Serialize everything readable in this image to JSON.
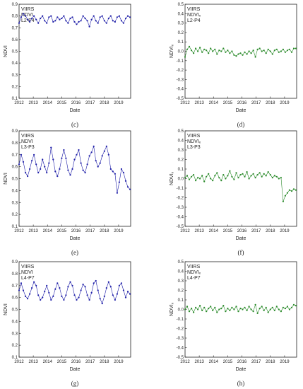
{
  "colors": {
    "blue": "#1f1fa8",
    "green": "#2a8a2a"
  },
  "x_axis": {
    "label": "Date",
    "range": [
      2012,
      2019.85
    ],
    "ticks": [
      "2012",
      "2013",
      "2014",
      "2015",
      "2016",
      "2017",
      "2018",
      "2019"
    ]
  },
  "chart_data": [
    {
      "type": "line",
      "panel_label": "(c)",
      "legend": [
        "VIIRS",
        "NDVI",
        "L2-P4"
      ],
      "ylabel": "NDVI",
      "ylim": [
        0.1,
        0.9
      ],
      "yticks": [
        "0.1",
        "0.2",
        "0.3",
        "0.4",
        "0.5",
        "0.6",
        "0.7",
        "0.8",
        "0.9"
      ],
      "color": "#1f1fa8",
      "series": [
        {
          "x": [
            2012.0,
            2012.15,
            2012.3,
            2012.45,
            2012.6,
            2012.75,
            2012.9,
            2013.05,
            2013.2,
            2013.35,
            2013.5,
            2013.65,
            2013.8,
            2013.95,
            2014.1,
            2014.25,
            2014.4,
            2014.55,
            2014.7,
            2014.85,
            2015.0,
            2015.15,
            2015.3,
            2015.45,
            2015.6,
            2015.75,
            2015.9,
            2016.05,
            2016.2,
            2016.35,
            2016.5,
            2016.65,
            2016.8,
            2016.95,
            2017.1,
            2017.25,
            2017.4,
            2017.55,
            2017.7,
            2017.85,
            2018.0,
            2018.15,
            2018.3,
            2018.45,
            2018.6,
            2018.75,
            2018.9,
            2019.05,
            2019.2,
            2019.35,
            2019.5,
            2019.65,
            2019.8
          ],
          "y": [
            0.74,
            0.79,
            0.82,
            0.8,
            0.77,
            0.75,
            0.78,
            0.8,
            0.77,
            0.74,
            0.78,
            0.8,
            0.76,
            0.74,
            0.79,
            0.8,
            0.75,
            0.76,
            0.79,
            0.77,
            0.78,
            0.8,
            0.76,
            0.74,
            0.78,
            0.79,
            0.75,
            0.73,
            0.75,
            0.76,
            0.8,
            0.78,
            0.76,
            0.71,
            0.77,
            0.8,
            0.76,
            0.74,
            0.79,
            0.8,
            0.76,
            0.74,
            0.78,
            0.8,
            0.76,
            0.75,
            0.79,
            0.8,
            0.76,
            0.74,
            0.78,
            0.8,
            0.79
          ]
        }
      ]
    },
    {
      "type": "line",
      "panel_label": "(d)",
      "legend": [
        "VIIRS",
        "NDVIₓ",
        "L2-P4"
      ],
      "ylabel": "NDVIₓ",
      "ylim": [
        -0.5,
        0.5
      ],
      "yticks": [
        "-0.5",
        "-0.4",
        "-0.3",
        "-0.2",
        "-0.1",
        "0.0",
        "0.1",
        "0.2",
        "0.3",
        "0.4",
        "0.5"
      ],
      "color": "#2a8a2a",
      "series": [
        {
          "x": [
            2012.0,
            2012.15,
            2012.3,
            2012.45,
            2012.6,
            2012.75,
            2012.9,
            2013.05,
            2013.2,
            2013.35,
            2013.5,
            2013.65,
            2013.8,
            2013.95,
            2014.1,
            2014.25,
            2014.4,
            2014.55,
            2014.7,
            2014.85,
            2015.0,
            2015.15,
            2015.3,
            2015.45,
            2015.6,
            2015.75,
            2015.9,
            2016.05,
            2016.2,
            2016.35,
            2016.5,
            2016.65,
            2016.8,
            2016.95,
            2017.1,
            2017.25,
            2017.4,
            2017.55,
            2017.7,
            2017.85,
            2018.0,
            2018.15,
            2018.3,
            2018.45,
            2018.6,
            2018.75,
            2018.9,
            2019.05,
            2019.2,
            2019.35,
            2019.5,
            2019.65,
            2019.8
          ],
          "y": [
            -0.06,
            0.02,
            0.05,
            0.01,
            -0.02,
            0.03,
            0.0,
            0.04,
            -0.01,
            0.02,
            0.01,
            -0.02,
            0.03,
            0.0,
            0.02,
            -0.03,
            0.01,
            0.0,
            0.03,
            -0.01,
            0.01,
            -0.02,
            0.0,
            -0.04,
            -0.05,
            -0.03,
            -0.02,
            -0.04,
            -0.01,
            -0.03,
            0.0,
            -0.02,
            0.01,
            -0.06,
            0.02,
            0.03,
            0.0,
            0.01,
            -0.02,
            0.02,
            0.0,
            -0.03,
            0.01,
            0.02,
            -0.01,
            0.0,
            0.02,
            -0.01,
            0.01,
            0.02,
            -0.01,
            0.03,
            0.03
          ]
        }
      ]
    },
    {
      "type": "line",
      "panel_label": "(e)",
      "legend": [
        "VIIRS",
        "NDVI",
        "L3-P3"
      ],
      "ylabel": "NDVI",
      "ylim": [
        0.1,
        0.9
      ],
      "yticks": [
        "0.1",
        "0.2",
        "0.3",
        "0.4",
        "0.5",
        "0.6",
        "0.7",
        "0.8",
        "0.9"
      ],
      "color": "#1f1fa8",
      "series": [
        {
          "x": [
            2012.0,
            2012.15,
            2012.3,
            2012.45,
            2012.6,
            2012.75,
            2012.9,
            2013.05,
            2013.2,
            2013.35,
            2013.5,
            2013.65,
            2013.8,
            2013.95,
            2014.1,
            2014.25,
            2014.4,
            2014.55,
            2014.7,
            2014.85,
            2015.0,
            2015.15,
            2015.3,
            2015.45,
            2015.6,
            2015.75,
            2015.9,
            2016.05,
            2016.2,
            2016.35,
            2016.5,
            2016.65,
            2016.8,
            2016.95,
            2017.1,
            2017.25,
            2017.4,
            2017.55,
            2017.7,
            2017.85,
            2018.0,
            2018.15,
            2018.3,
            2018.45,
            2018.6,
            2018.75,
            2018.9,
            2019.05,
            2019.2,
            2019.35,
            2019.5,
            2019.65,
            2019.8
          ],
          "y": [
            0.62,
            0.7,
            0.64,
            0.55,
            0.52,
            0.58,
            0.65,
            0.7,
            0.62,
            0.55,
            0.58,
            0.66,
            0.6,
            0.55,
            0.63,
            0.76,
            0.66,
            0.56,
            0.52,
            0.58,
            0.67,
            0.74,
            0.67,
            0.57,
            0.53,
            0.58,
            0.66,
            0.7,
            0.74,
            0.63,
            0.57,
            0.55,
            0.62,
            0.69,
            0.72,
            0.77,
            0.65,
            0.6,
            0.63,
            0.69,
            0.73,
            0.77,
            0.7,
            0.58,
            0.56,
            0.54,
            0.38,
            0.47,
            0.58,
            0.55,
            0.48,
            0.43,
            0.41
          ]
        }
      ]
    },
    {
      "type": "line",
      "panel_label": "(f)",
      "legend": [
        "VIIRS",
        "NDVIₓ",
        "L3-P3"
      ],
      "ylabel": "NDVIₓ",
      "ylim": [
        -0.5,
        0.5
      ],
      "yticks": [
        "-0.5",
        "-0.4",
        "-0.3",
        "-0.2",
        "-0.1",
        "0.0",
        "0.1",
        "0.2",
        "0.3",
        "0.4",
        "0.5"
      ],
      "color": "#2a8a2a",
      "series": [
        {
          "x": [
            2012.0,
            2012.15,
            2012.3,
            2012.45,
            2012.6,
            2012.75,
            2012.9,
            2013.05,
            2013.2,
            2013.35,
            2013.5,
            2013.65,
            2013.8,
            2013.95,
            2014.1,
            2014.25,
            2014.4,
            2014.55,
            2014.7,
            2014.85,
            2015.0,
            2015.15,
            2015.3,
            2015.45,
            2015.6,
            2015.75,
            2015.9,
            2016.05,
            2016.2,
            2016.35,
            2016.5,
            2016.65,
            2016.8,
            2016.95,
            2017.1,
            2017.25,
            2017.4,
            2017.55,
            2017.7,
            2017.85,
            2018.0,
            2018.15,
            2018.3,
            2018.45,
            2018.6,
            2018.75,
            2018.9,
            2019.05,
            2019.2,
            2019.35,
            2019.5,
            2019.65,
            2019.8
          ],
          "y": [
            0.01,
            0.03,
            -0.01,
            0.02,
            0.04,
            -0.02,
            0.01,
            0.0,
            0.03,
            -0.03,
            0.02,
            0.05,
            0.0,
            -0.02,
            0.03,
            0.06,
            0.01,
            -0.02,
            0.04,
            0.0,
            0.03,
            0.08,
            0.02,
            -0.01,
            0.06,
            0.01,
            0.04,
            0.05,
            0.02,
            0.07,
            0.0,
            0.03,
            0.05,
            0.01,
            0.04,
            0.06,
            0.02,
            0.05,
            0.03,
            0.07,
            0.04,
            0.01,
            0.03,
            0.02,
            0.0,
            0.01,
            -0.24,
            -0.18,
            -0.15,
            -0.12,
            -0.13,
            -0.11,
            -0.12
          ]
        }
      ]
    },
    {
      "type": "line",
      "panel_label": "(g)",
      "legend": [
        "VIIRS",
        "NDVI",
        "L4-P7"
      ],
      "ylabel": "NDVI",
      "ylim": [
        0.1,
        0.9
      ],
      "yticks": [
        "0.1",
        "0.2",
        "0.3",
        "0.4",
        "0.5",
        "0.6",
        "0.7",
        "0.8",
        "0.9"
      ],
      "color": "#1f1fa8",
      "series": [
        {
          "x": [
            2012.0,
            2012.15,
            2012.3,
            2012.45,
            2012.6,
            2012.75,
            2012.9,
            2013.05,
            2013.2,
            2013.35,
            2013.5,
            2013.65,
            2013.8,
            2013.95,
            2014.1,
            2014.25,
            2014.4,
            2014.55,
            2014.7,
            2014.85,
            2015.0,
            2015.15,
            2015.3,
            2015.45,
            2015.6,
            2015.75,
            2015.9,
            2016.05,
            2016.2,
            2016.35,
            2016.5,
            2016.65,
            2016.8,
            2016.95,
            2017.1,
            2017.25,
            2017.4,
            2017.55,
            2017.7,
            2017.85,
            2018.0,
            2018.15,
            2018.3,
            2018.45,
            2018.6,
            2018.75,
            2018.9,
            2019.05,
            2019.2,
            2019.35,
            2019.5,
            2019.65,
            2019.8
          ],
          "y": [
            0.66,
            0.72,
            0.66,
            0.61,
            0.59,
            0.63,
            0.68,
            0.73,
            0.7,
            0.62,
            0.58,
            0.6,
            0.65,
            0.7,
            0.64,
            0.58,
            0.61,
            0.67,
            0.72,
            0.68,
            0.61,
            0.58,
            0.62,
            0.69,
            0.73,
            0.7,
            0.62,
            0.58,
            0.6,
            0.66,
            0.71,
            0.69,
            0.62,
            0.58,
            0.64,
            0.72,
            0.74,
            0.66,
            0.59,
            0.55,
            0.61,
            0.68,
            0.73,
            0.69,
            0.62,
            0.58,
            0.63,
            0.7,
            0.72,
            0.66,
            0.6,
            0.65,
            0.63
          ]
        }
      ]
    },
    {
      "type": "line",
      "panel_label": "(h)",
      "legend": [
        "VIIRS",
        "NDVIₓ",
        "L4-P7"
      ],
      "ylabel": "NDVIₓ",
      "ylim": [
        -0.5,
        0.5
      ],
      "yticks": [
        "-0.5",
        "-0.4",
        "-0.3",
        "-0.2",
        "-0.1",
        "0.0",
        "0.1",
        "0.2",
        "0.3",
        "0.4",
        "0.5"
      ],
      "color": "#2a8a2a",
      "series": [
        {
          "x": [
            2012.0,
            2012.15,
            2012.3,
            2012.45,
            2012.6,
            2012.75,
            2012.9,
            2013.05,
            2013.2,
            2013.35,
            2013.5,
            2013.65,
            2013.8,
            2013.95,
            2014.1,
            2014.25,
            2014.4,
            2014.55,
            2014.7,
            2014.85,
            2015.0,
            2015.15,
            2015.3,
            2015.45,
            2015.6,
            2015.75,
            2015.9,
            2016.05,
            2016.2,
            2016.35,
            2016.5,
            2016.65,
            2016.8,
            2016.95,
            2017.1,
            2017.25,
            2017.4,
            2017.55,
            2017.7,
            2017.85,
            2018.0,
            2018.15,
            2018.3,
            2018.45,
            2018.6,
            2018.75,
            2018.9,
            2019.05,
            2019.2,
            2019.35,
            2019.5,
            2019.65,
            2019.8
          ],
          "y": [
            0.0,
            0.03,
            -0.02,
            0.01,
            -0.03,
            0.02,
            0.0,
            0.04,
            -0.01,
            0.02,
            -0.02,
            0.01,
            0.03,
            -0.01,
            0.02,
            -0.03,
            0.0,
            0.01,
            0.04,
            -0.02,
            0.01,
            -0.01,
            0.02,
            0.0,
            0.03,
            -0.02,
            0.01,
            0.0,
            0.02,
            -0.01,
            0.03,
            0.0,
            -0.02,
            0.05,
            -0.04,
            0.01,
            0.03,
            -0.01,
            0.02,
            -0.03,
            0.0,
            0.02,
            -0.01,
            0.03,
            0.0,
            -0.02,
            0.02,
            0.01,
            0.03,
            0.0,
            0.02,
            0.05,
            0.04
          ]
        }
      ]
    }
  ]
}
